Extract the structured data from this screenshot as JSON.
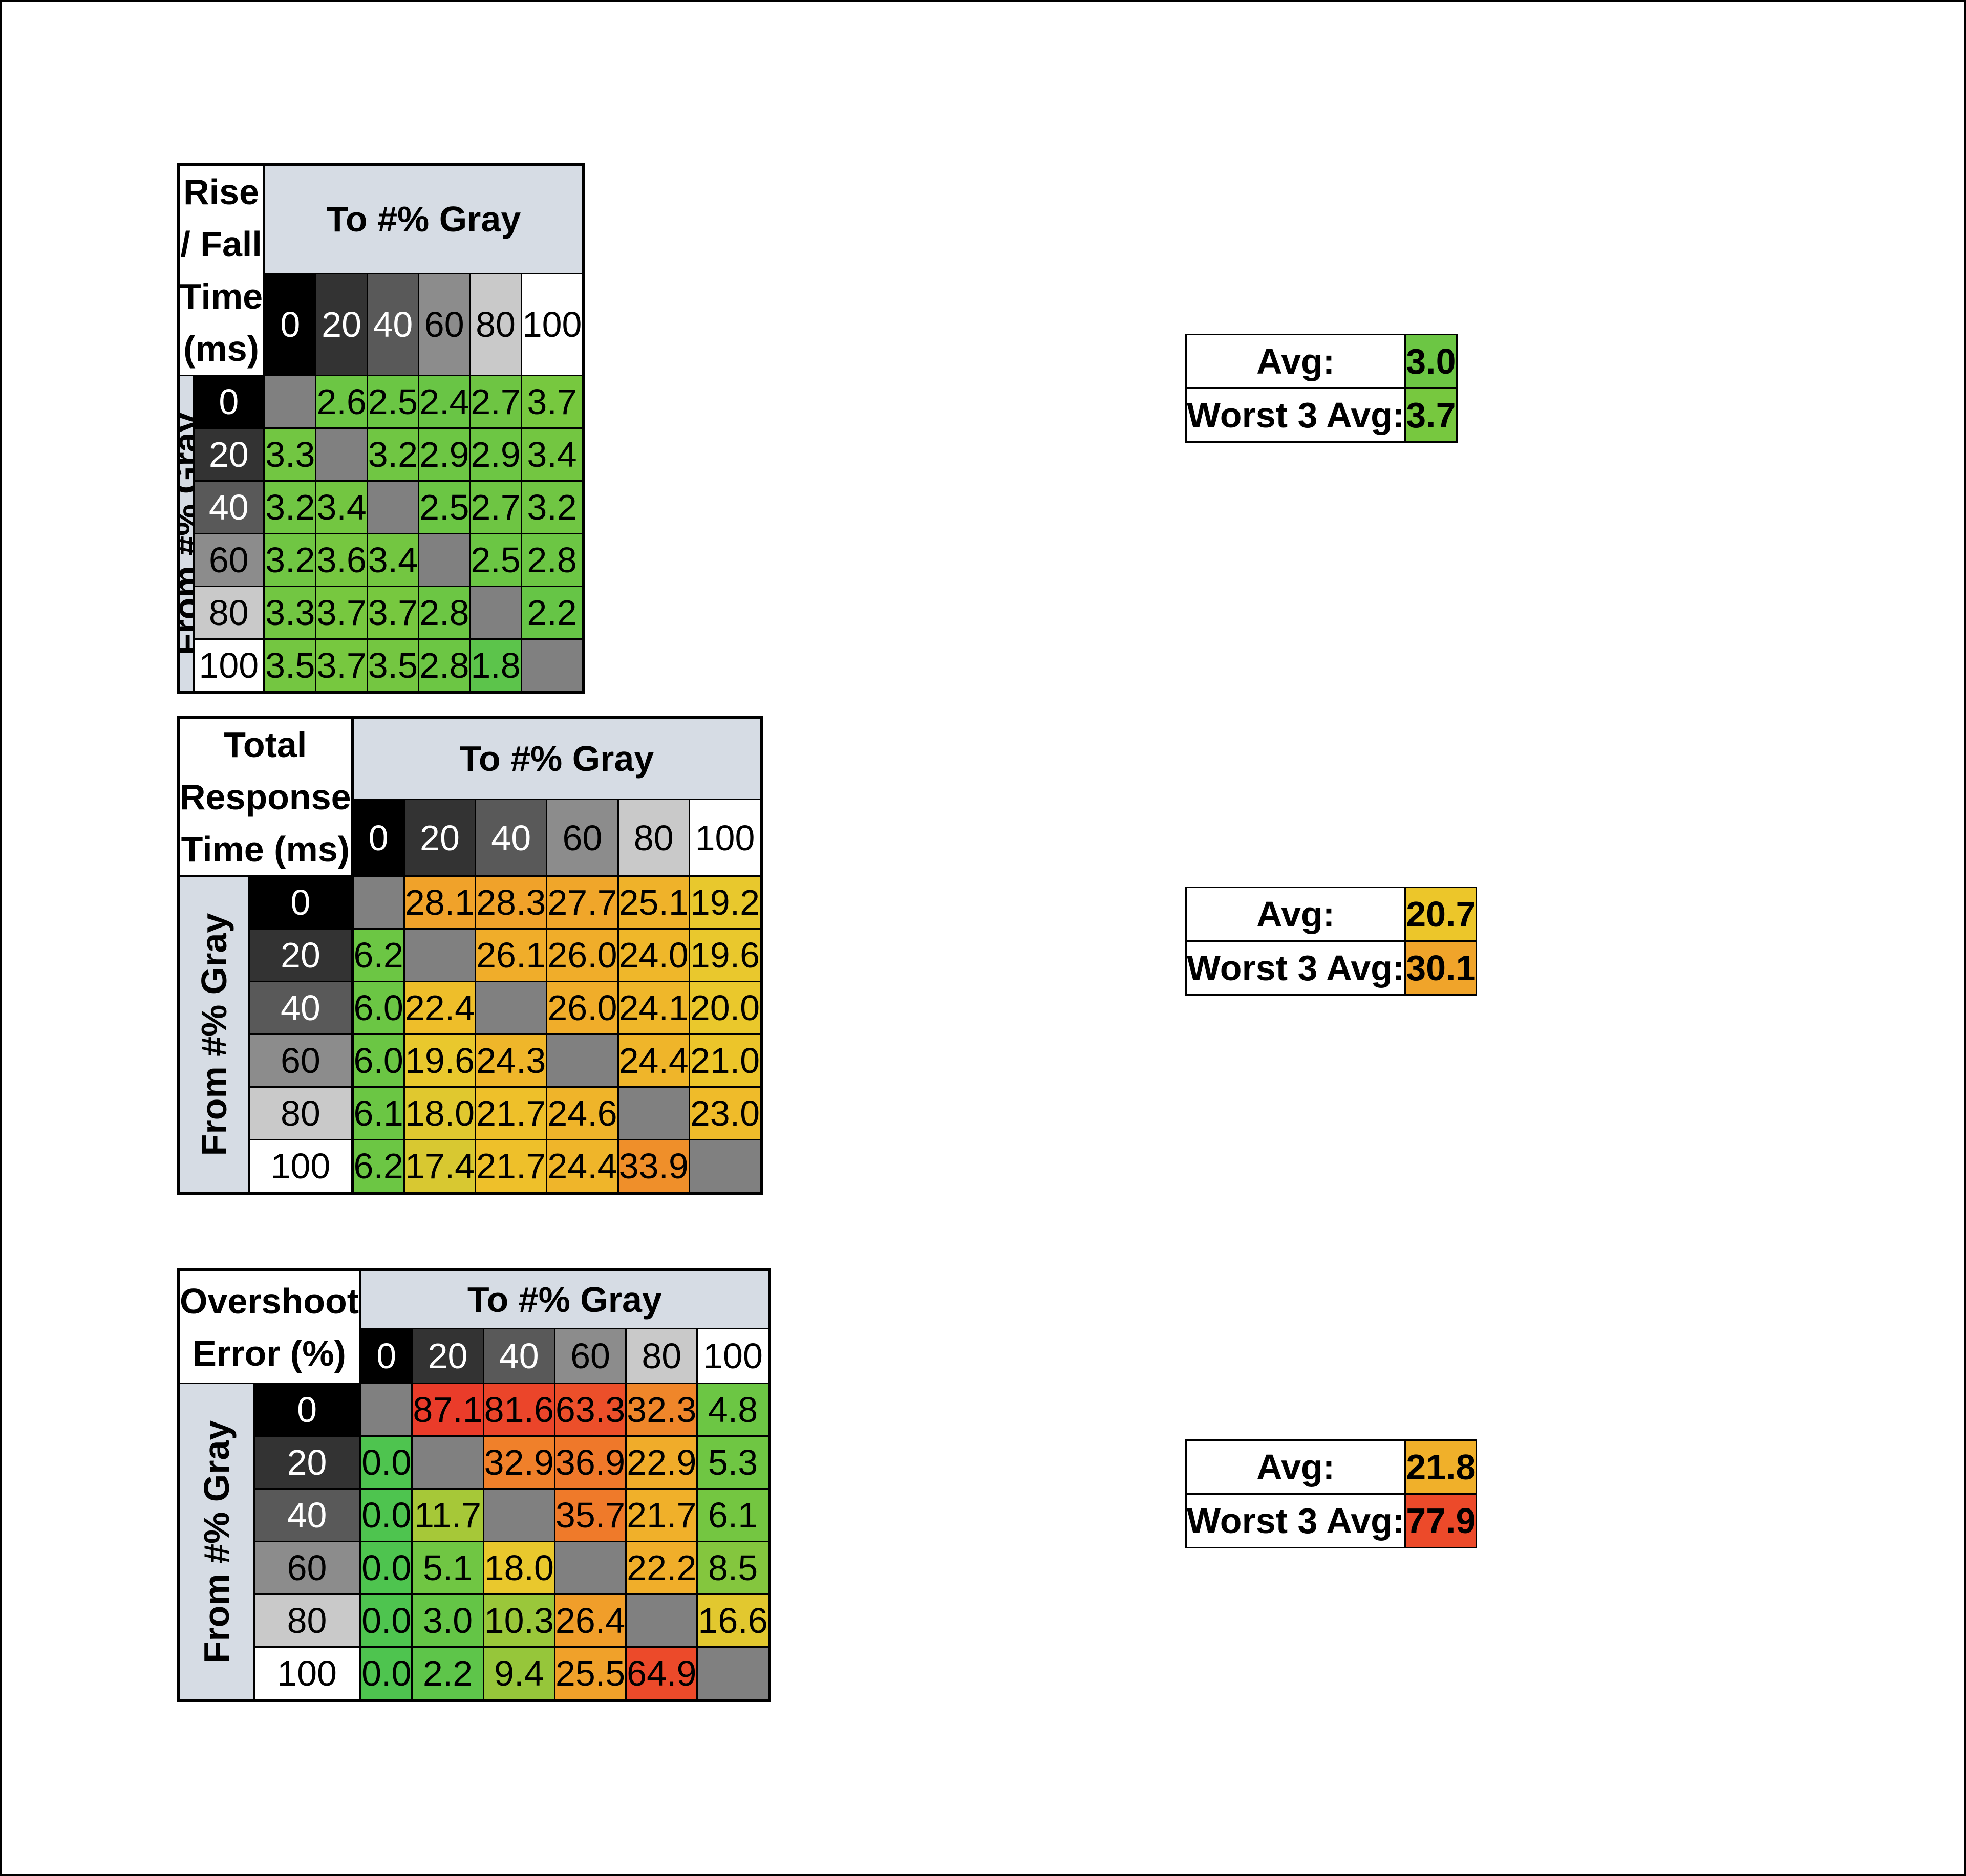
{
  "columns": [
    "0",
    "20",
    "40",
    "60",
    "80",
    "100"
  ],
  "rows": [
    "0",
    "20",
    "40",
    "60",
    "80",
    "100"
  ],
  "shade_colors": [
    "#000000",
    "#333333",
    "#595959",
    "#8c8c8c",
    "#c9c9c9",
    "#ffffff"
  ],
  "shade_text_colors": [
    "#ffffff",
    "#ffffff",
    "#ffffff",
    "#000000",
    "#000000",
    "#000000"
  ],
  "diagonal_color": "#808080",
  "header_bg": "#d6dce4",
  "to_label": "To #% Gray",
  "from_label": "From #% Gray",
  "tables": [
    {
      "title_line1": "Rise / Fall",
      "title_line2": "Time (ms)",
      "avg_label": "Avg:",
      "avg_value": "3.0",
      "avg_color": "#6cc644",
      "worst_label": "Worst 3 Avg:",
      "worst_value": "3.7",
      "worst_color": "#77c83f",
      "values": [
        [
          null,
          "2.6",
          "2.5",
          "2.4",
          "2.7",
          "3.7"
        ],
        [
          "3.3",
          null,
          "3.2",
          "2.9",
          "2.9",
          "3.4"
        ],
        [
          "3.2",
          "3.4",
          null,
          "2.5",
          "2.7",
          "3.2"
        ],
        [
          "3.2",
          "3.6",
          "3.4",
          null,
          "2.5",
          "2.8"
        ],
        [
          "3.3",
          "3.7",
          "3.7",
          "2.8",
          null,
          "2.2"
        ],
        [
          "3.5",
          "3.7",
          "3.5",
          "2.8",
          "1.8",
          null
        ]
      ],
      "colors": [
        [
          null,
          "#6cc644",
          "#6bc644",
          "#69c545",
          "#6ec543",
          "#77c83f"
        ],
        [
          "#72c642",
          null,
          "#70c643",
          "#6dc644",
          "#6dc644",
          "#73c641"
        ],
        [
          "#70c643",
          "#73c641",
          null,
          "#6bc644",
          "#6ec543",
          "#70c643"
        ],
        [
          "#70c643",
          "#76c740",
          "#73c641",
          null,
          "#6bc644",
          "#6cc644"
        ],
        [
          "#72c642",
          "#77c83f",
          "#77c83f",
          "#6cc644",
          null,
          "#66c546"
        ],
        [
          "#74c641",
          "#77c83f",
          "#74c641",
          "#6cc644",
          "#5cc44b",
          null
        ]
      ]
    },
    {
      "title_line1": "Total Response",
      "title_line2": "Time (ms)",
      "avg_label": "Avg:",
      "avg_value": "20.7",
      "avg_color": "#ecc62a",
      "worst_label": "Worst 3 Avg:",
      "worst_value": "30.1",
      "worst_color": "#f0a42a",
      "values": [
        [
          null,
          "28.1",
          "28.3",
          "27.7",
          "25.1",
          "19.2"
        ],
        [
          "6.2",
          null,
          "26.1",
          "26.0",
          "24.0",
          "19.6"
        ],
        [
          "6.0",
          "22.4",
          null,
          "26.0",
          "24.1",
          "20.0"
        ],
        [
          "6.0",
          "19.6",
          "24.3",
          null,
          "24.4",
          "21.0"
        ],
        [
          "6.1",
          "18.0",
          "21.7",
          "24.6",
          null,
          "23.0"
        ],
        [
          "6.2",
          "17.4",
          "21.7",
          "24.4",
          "33.9",
          null
        ]
      ],
      "colors": [
        [
          null,
          "#f0a22a",
          "#f0a22a",
          "#f0a62a",
          "#efb22a",
          "#e8c82d"
        ],
        [
          "#6cc644",
          null,
          "#f0ad2a",
          "#f0ad2a",
          "#efb72a",
          "#e9c82d"
        ],
        [
          "#6bc644",
          "#eebe2a",
          null,
          "#f0ad2a",
          "#efb72a",
          "#eac82c"
        ],
        [
          "#6bc644",
          "#e9c82d",
          "#efb62a",
          null,
          "#efb52a",
          "#ecc52a"
        ],
        [
          "#6bc644",
          "#e0c82f",
          "#eec02a",
          "#efb42a",
          null,
          "#efbb2a"
        ],
        [
          "#6cc644",
          "#d8c831",
          "#eec02a",
          "#efb52a",
          "#ef8f2a",
          null
        ]
      ]
    },
    {
      "title_line1": "Overshoot",
      "title_line2": "Error (%)",
      "avg_label": "Avg:",
      "avg_value": "21.8",
      "avg_color": "#f0b02a",
      "worst_label": "Worst 3 Avg:",
      "worst_value": "77.9",
      "worst_color": "#ec4a2a",
      "values": [
        [
          null,
          "87.1",
          "81.6",
          "63.3",
          "32.3",
          "4.8"
        ],
        [
          "0.0",
          null,
          "32.9",
          "36.9",
          "22.9",
          "5.3"
        ],
        [
          "0.0",
          "11.7",
          null,
          "35.7",
          "21.7",
          "6.1"
        ],
        [
          "0.0",
          "5.1",
          "18.0",
          null,
          "22.2",
          "8.5"
        ],
        [
          "0.0",
          "3.0",
          "10.3",
          "26.4",
          null,
          "16.6"
        ],
        [
          "0.0",
          "2.2",
          "9.4",
          "25.5",
          "64.9",
          null
        ]
      ],
      "colors": [
        [
          null,
          "#ea3c2a",
          "#eb452a",
          "#ec4f2a",
          "#ef862a",
          "#6cc644"
        ],
        [
          "#4ec44f",
          null,
          "#f0802a",
          "#ef782a",
          "#f0ac2a",
          "#6fc643"
        ],
        [
          "#4ec44f",
          "#a6c838",
          null,
          "#ef7a2a",
          "#f0b02a",
          "#74c641"
        ],
        [
          "#4ec44f",
          "#70c643",
          "#e9c82d",
          null,
          "#f0ae2a",
          "#84c63e"
        ],
        [
          "#4ec44f",
          "#64c546",
          "#9ac73a",
          "#f09e2a",
          null,
          "#e2c82f"
        ],
        [
          "#4ec44f",
          "#5ec54a",
          "#96c63a",
          "#f0a12a",
          "#ec4a2a",
          null
        ]
      ]
    }
  ]
}
